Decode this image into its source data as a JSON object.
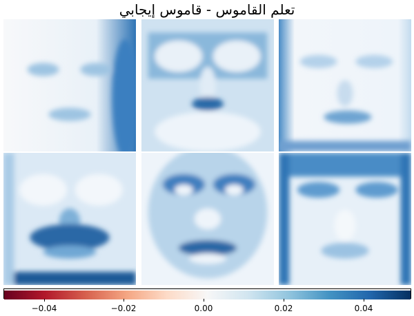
{
  "title": "تعلم القاموس - قاموس إيجابي",
  "chart_data": {
    "type": "heatmap",
    "title": "تعلم القاموس - قاموس إيجابي",
    "colormap": "RdBu",
    "vmin": -0.05,
    "vmax": 0.05,
    "colorbar_ticks": [
      -0.04,
      -0.02,
      0.0,
      0.02,
      0.04
    ],
    "colorbar_tick_labels": [
      "−0.04",
      "−0.02",
      "0.00",
      "0.02",
      "0.04"
    ],
    "panels": [
      {
        "id": "component-1",
        "row": 0,
        "col": 0,
        "value_range": [
          0.0,
          0.05
        ]
      },
      {
        "id": "component-2",
        "row": 0,
        "col": 1,
        "value_range": [
          0.0,
          0.05
        ]
      },
      {
        "id": "component-3",
        "row": 0,
        "col": 2,
        "value_range": [
          0.0,
          0.05
        ]
      },
      {
        "id": "component-4",
        "row": 1,
        "col": 0,
        "value_range": [
          0.0,
          0.05
        ]
      },
      {
        "id": "component-5",
        "row": 1,
        "col": 1,
        "value_range": [
          0.0,
          0.05
        ]
      },
      {
        "id": "component-6",
        "row": 1,
        "col": 2,
        "value_range": [
          0.0,
          0.05
        ]
      }
    ]
  }
}
